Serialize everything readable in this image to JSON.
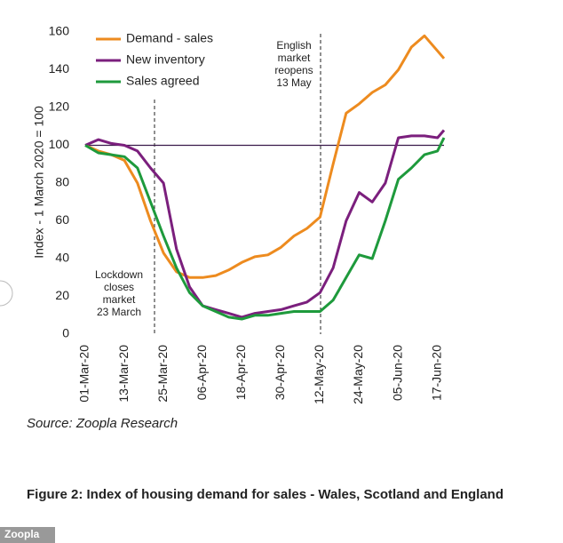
{
  "chart_data": {
    "type": "line",
    "y_label": "Index - 1 March 2020 = 100",
    "x": [
      "01-Mar-20",
      "05-Mar-20",
      "09-Mar-20",
      "13-Mar-20",
      "17-Mar-20",
      "21-Mar-20",
      "25-Mar-20",
      "29-Mar-20",
      "02-Apr-20",
      "06-Apr-20",
      "10-Apr-20",
      "14-Apr-20",
      "18-Apr-20",
      "22-Apr-20",
      "26-Apr-20",
      "30-Apr-20",
      "04-May-20",
      "08-May-20",
      "12-May-20",
      "16-May-20",
      "20-May-20",
      "24-May-20",
      "28-May-20",
      "01-Jun-20",
      "05-Jun-20",
      "09-Jun-20",
      "13-Jun-20",
      "17-Jun-20",
      "19-Jun-20"
    ],
    "series": [
      {
        "name": "Demand - sales",
        "color": "#ed8b1f",
        "values": [
          100,
          97,
          95,
          92,
          80,
          60,
          43,
          33,
          30,
          30,
          31,
          34,
          38,
          41,
          42,
          46,
          52,
          56,
          62,
          90,
          117,
          122,
          128,
          132,
          140,
          152,
          158,
          150,
          146
        ]
      },
      {
        "name": "New inventory",
        "color": "#7b1f7d",
        "values": [
          100,
          103,
          101,
          100,
          97,
          88,
          80,
          45,
          25,
          15,
          13,
          11,
          9,
          11,
          12,
          13,
          15,
          17,
          22,
          35,
          60,
          75,
          70,
          80,
          104,
          105,
          105,
          104,
          108
        ]
      },
      {
        "name": "Sales agreed",
        "color": "#1e9a3c",
        "values": [
          100,
          96,
          95,
          94,
          88,
          70,
          52,
          35,
          22,
          15,
          12,
          9,
          8,
          10,
          10,
          11,
          12,
          12,
          12,
          18,
          30,
          42,
          40,
          60,
          82,
          88,
          95,
          97,
          104
        ]
      }
    ],
    "reference_line": 100,
    "xlim": [
      "01-Mar-20",
      "19-Jun-20"
    ],
    "xticks": [
      "01-Mar-20",
      "13-Mar-20",
      "25-Mar-20",
      "06-Apr-20",
      "18-Apr-20",
      "30-Apr-20",
      "12-May-20",
      "24-May-20",
      "05-Jun-20",
      "17-Jun-20"
    ],
    "ylim": [
      0,
      160
    ],
    "yticks": [
      0,
      20,
      40,
      60,
      80,
      100,
      120,
      140,
      160
    ],
    "annotations": [
      [
        "Lockdown",
        "closes",
        "market",
        "23 March"
      ],
      [
        "English",
        "market",
        "reopens",
        "13 May"
      ]
    ],
    "source": "Source: Zoopla Research",
    "caption": "Figure 2: Index of housing demand for sales - Wales, Scotland and England",
    "watermark": "Zoopla"
  }
}
